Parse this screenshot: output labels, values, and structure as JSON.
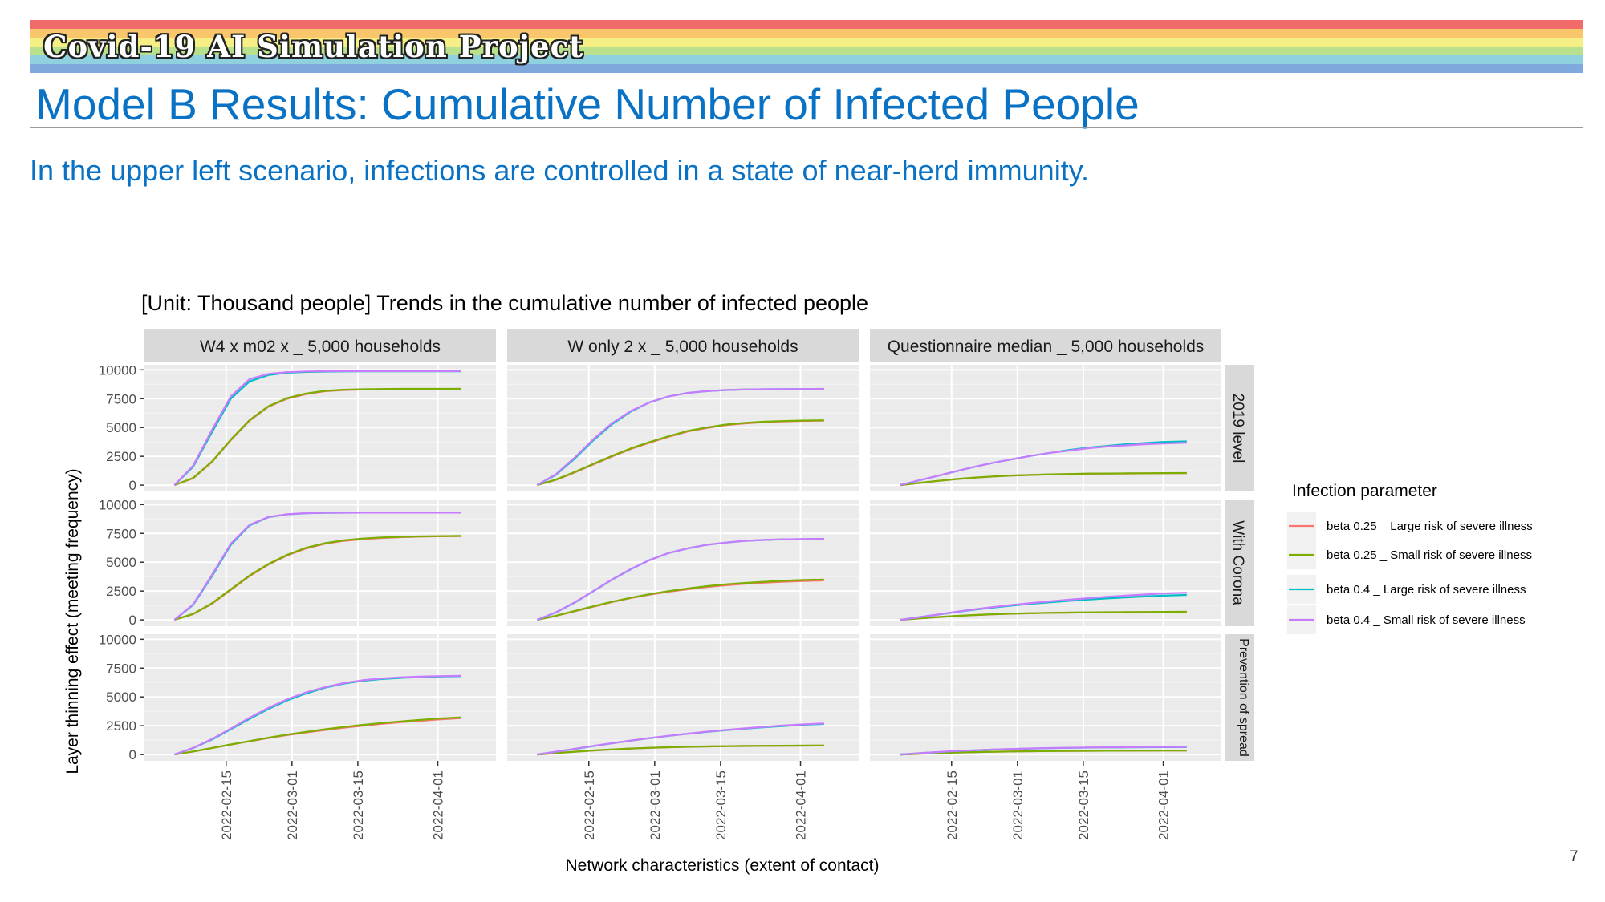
{
  "banner": {
    "project_title": "Covid-19 AI Simulation Project",
    "stripe_colors": [
      "#f26b6b",
      "#f9c66b",
      "#f6ef86",
      "#b9e08c",
      "#8fd1de",
      "#7fa8dd"
    ]
  },
  "slide": {
    "title": "Model B Results: Cumulative Number of Infected People",
    "subtitle": "In the upper left scenario, infections are controlled in a state of near-herd immunity.",
    "page_number": "7"
  },
  "colors": {
    "title_blue": "#0a72c4",
    "panel_bg": "#ebebeb",
    "strip_bg": "#d9d9d9"
  },
  "chart_data": {
    "type": "line",
    "title": "[Unit: Thousand people] Trends in the cumulative number of infected people",
    "xlabel": "Network characteristics (extent of contact)",
    "ylabel": "Layer thinning effect (meeting frequency)",
    "ylim": [
      0,
      10000
    ],
    "yticks": [
      0,
      2500,
      5000,
      7500,
      10000
    ],
    "ytick_labels": [
      "0",
      "2500",
      "5000",
      "7500",
      "10000"
    ],
    "xlim": [
      "2022-02-01",
      "2022-04-10"
    ],
    "xticks": [
      "2022-02-15",
      "2022-03-01",
      "2022-03-15",
      "2022-04-01"
    ],
    "x": [
      "2022-02-04",
      "2022-02-08",
      "2022-02-12",
      "2022-02-16",
      "2022-02-20",
      "2022-02-24",
      "2022-02-28",
      "2022-03-04",
      "2022-03-08",
      "2022-03-12",
      "2022-03-16",
      "2022-03-20",
      "2022-03-24",
      "2022-03-28",
      "2022-04-01",
      "2022-04-06"
    ],
    "grid": true,
    "legend": {
      "title": "Infection parameter",
      "position": "right",
      "entries": [
        {
          "label": "beta 0.25 _ Large risk of severe illness",
          "color": "#f8766d"
        },
        {
          "label": "beta 0.25 _ Small risk of severe illness",
          "color": "#7cae00"
        },
        {
          "label": "beta 0.4 _ Large risk of severe illness",
          "color": "#00bfc4"
        },
        {
          "label": "beta 0.4 _ Small risk of severe illness",
          "color": "#c77cff"
        }
      ]
    },
    "columns": [
      "W4 x m02 x _ 5,000 households",
      "W only 2 x _ 5,000 households",
      "Questionnaire median _ 5,000 households"
    ],
    "rows": [
      "2019 level",
      "With Corona",
      "Prevention of spread"
    ],
    "panels": [
      {
        "row": 0,
        "col": 0,
        "series": [
          {
            "values": [
              0,
              600,
              2000,
              3900,
              5600,
              6800,
              7500,
              7900,
              8150,
              8250,
              8300,
              8320,
              8330,
              8340,
              8340,
              8350
            ]
          },
          {
            "values": [
              0,
              630,
              2050,
              3950,
              5650,
              6850,
              7550,
              7950,
              8180,
              8280,
              8320,
              8340,
              8350,
              8350,
              8350,
              8350
            ]
          },
          {
            "values": [
              0,
              1600,
              4600,
              7500,
              9000,
              9550,
              9750,
              9820,
              9850,
              9860,
              9870,
              9870,
              9870,
              9870,
              9870,
              9870
            ]
          },
          {
            "values": [
              0,
              1700,
              4800,
              7700,
              9200,
              9650,
              9800,
              9860,
              9880,
              9890,
              9890,
              9890,
              9890,
              9890,
              9890,
              9890
            ]
          }
        ]
      },
      {
        "row": 0,
        "col": 1,
        "series": [
          {
            "values": [
              0,
              450,
              1100,
              1800,
              2500,
              3150,
              3700,
              4200,
              4650,
              4950,
              5200,
              5350,
              5450,
              5520,
              5570,
              5600
            ]
          },
          {
            "values": [
              0,
              480,
              1150,
              1850,
              2550,
              3200,
              3750,
              4250,
              4700,
              5000,
              5250,
              5400,
              5500,
              5560,
              5600,
              5630
            ]
          },
          {
            "values": [
              0,
              900,
              2300,
              3900,
              5300,
              6400,
              7200,
              7700,
              8000,
              8150,
              8250,
              8300,
              8320,
              8330,
              8340,
              8340
            ]
          },
          {
            "values": [
              0,
              950,
              2400,
              4000,
              5400,
              6450,
              7200,
              7700,
              8000,
              8150,
              8250,
              8300,
              8320,
              8330,
              8340,
              8350
            ]
          }
        ]
      },
      {
        "row": 0,
        "col": 2,
        "series": [
          {
            "values": [
              0,
              180,
              360,
              520,
              650,
              750,
              830,
              880,
              930,
              960,
              990,
              1000,
              1010,
              1020,
              1030,
              1040
            ]
          },
          {
            "values": [
              0,
              190,
              370,
              530,
              660,
              760,
              840,
              890,
              940,
              970,
              1000,
              1010,
              1020,
              1030,
              1040,
              1050
            ]
          },
          {
            "values": [
              0,
              400,
              800,
              1200,
              1600,
              1950,
              2250,
              2550,
              2800,
              3050,
              3250,
              3400,
              3550,
              3650,
              3750,
              3800
            ]
          },
          {
            "values": [
              0,
              410,
              810,
              1210,
              1600,
              1950,
              2250,
              2550,
              2800,
              3000,
              3200,
              3350,
              3450,
              3550,
              3620,
              3680
            ]
          }
        ]
      },
      {
        "row": 1,
        "col": 0,
        "series": [
          {
            "values": [
              0,
              500,
              1400,
              2600,
              3800,
              4800,
              5600,
              6200,
              6600,
              6850,
              7000,
              7100,
              7170,
              7220,
              7250,
              7270
            ]
          },
          {
            "values": [
              0,
              520,
              1450,
              2650,
              3850,
              4850,
              5650,
              6250,
              6650,
              6900,
              7050,
              7150,
              7200,
              7240,
              7260,
              7280
            ]
          },
          {
            "values": [
              0,
              1300,
              3800,
              6500,
              8200,
              8900,
              9150,
              9250,
              9280,
              9290,
              9300,
              9300,
              9300,
              9300,
              9300,
              9300
            ]
          },
          {
            "values": [
              0,
              1350,
              3900,
              6600,
              8250,
              8920,
              9160,
              9260,
              9290,
              9300,
              9300,
              9300,
              9300,
              9300,
              9300,
              9300
            ]
          }
        ]
      },
      {
        "row": 1,
        "col": 1,
        "series": [
          {
            "values": [
              0,
              350,
              750,
              1150,
              1550,
              1900,
              2200,
              2450,
              2650,
              2850,
              3000,
              3120,
              3220,
              3300,
              3360,
              3420
            ]
          },
          {
            "values": [
              0,
              360,
              770,
              1180,
              1580,
              1930,
              2240,
              2500,
              2720,
              2920,
              3080,
              3200,
              3300,
              3380,
              3450,
              3500
            ]
          },
          {
            "values": [
              0,
              650,
              1500,
              2500,
              3500,
              4400,
              5200,
              5800,
              6200,
              6500,
              6700,
              6850,
              6930,
              6980,
              7000,
              7020
            ]
          },
          {
            "values": [
              0,
              660,
              1520,
              2520,
              3520,
              4420,
              5200,
              5800,
              6200,
              6500,
              6700,
              6850,
              6930,
              6980,
              7010,
              7030
            ]
          }
        ]
      },
      {
        "row": 1,
        "col": 2,
        "series": [
          {
            "values": [
              0,
              120,
              240,
              340,
              420,
              490,
              540,
              580,
              610,
              630,
              650,
              660,
              670,
              680,
              690,
              700
            ]
          },
          {
            "values": [
              0,
              125,
              245,
              345,
              425,
              495,
              545,
              585,
              615,
              635,
              655,
              665,
              675,
              685,
              695,
              705
            ]
          },
          {
            "values": [
              0,
              220,
              450,
              680,
              890,
              1080,
              1250,
              1400,
              1530,
              1650,
              1760,
              1860,
              1950,
              2030,
              2100,
              2160
            ]
          },
          {
            "values": [
              0,
              225,
              460,
              700,
              920,
              1120,
              1300,
              1460,
              1610,
              1750,
              1880,
              2000,
              2100,
              2200,
              2290,
              2360
            ]
          }
        ]
      },
      {
        "row": 2,
        "col": 0,
        "series": [
          {
            "values": [
              0,
              260,
              560,
              860,
              1150,
              1430,
              1690,
              1920,
              2130,
              2320,
              2500,
              2660,
              2800,
              2920,
              3040,
              3160
            ]
          },
          {
            "values": [
              0,
              265,
              570,
              875,
              1170,
              1460,
              1730,
              1970,
              2190,
              2390,
              2570,
              2730,
              2870,
              3000,
              3120,
              3230
            ]
          },
          {
            "values": [
              0,
              560,
              1300,
              2200,
              3100,
              3950,
              4700,
              5300,
              5800,
              6150,
              6400,
              6550,
              6650,
              6720,
              6770,
              6800
            ]
          },
          {
            "values": [
              0,
              580,
              1350,
              2250,
              3200,
              4050,
              4800,
              5400,
              5850,
              6200,
              6450,
              6600,
              6700,
              6760,
              6800,
              6830
            ]
          }
        ]
      },
      {
        "row": 2,
        "col": 1,
        "series": [
          {
            "values": [
              0,
              120,
              240,
              350,
              440,
              520,
              580,
              630,
              670,
              700,
              720,
              740,
              750,
              760,
              770,
              780
            ]
          },
          {
            "values": [
              0,
              125,
              245,
              355,
              445,
              525,
              585,
              635,
              675,
              705,
              725,
              745,
              755,
              765,
              775,
              785
            ]
          },
          {
            "values": [
              0,
              240,
              490,
              740,
              980,
              1210,
              1420,
              1620,
              1800,
              1960,
              2110,
              2240,
              2360,
              2470,
              2570,
              2660
            ]
          },
          {
            "values": [
              0,
              245,
              500,
              750,
              990,
              1220,
              1430,
              1630,
              1810,
              1980,
              2130,
              2270,
              2400,
              2510,
              2610,
              2700
            ]
          }
        ]
      },
      {
        "row": 2,
        "col": 2,
        "series": [
          {
            "values": [
              0,
              60,
              120,
              170,
              210,
              240,
              265,
              285,
              300,
              310,
              320,
              325,
              330,
              335,
              338,
              340
            ]
          },
          {
            "values": [
              0,
              62,
              122,
              172,
              212,
              242,
              267,
              287,
              302,
              312,
              322,
              327,
              332,
              337,
              340,
              342
            ]
          },
          {
            "values": [
              0,
              110,
              210,
              300,
              370,
              430,
              480,
              520,
              550,
              575,
              595,
              610,
              620,
              630,
              640,
              650
            ]
          },
          {
            "values": [
              0,
              112,
              215,
              305,
              378,
              440,
              490,
              530,
              562,
              588,
              608,
              624,
              636,
              646,
              656,
              664
            ]
          }
        ]
      }
    ]
  }
}
